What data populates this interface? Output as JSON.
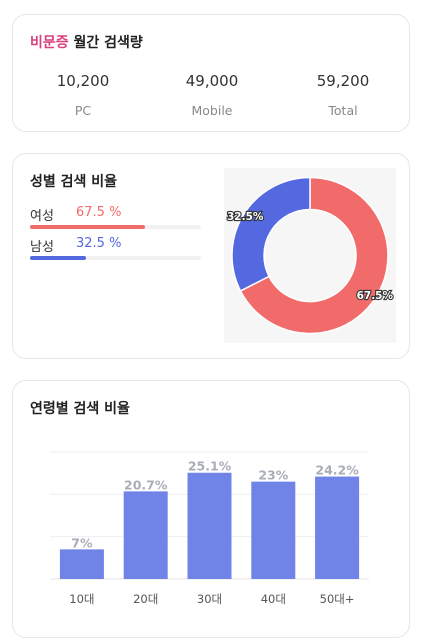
{
  "summary": {
    "keyword": "비문증",
    "title": "월간 검색량",
    "stats": [
      {
        "value": "10,200",
        "label": "PC"
      },
      {
        "value": "49,000",
        "label": "Mobile"
      },
      {
        "value": "59,200",
        "label": "Total"
      }
    ]
  },
  "gender": {
    "title": "성별 검색 비율",
    "female": {
      "label": "여성",
      "value_text": "67.5 %",
      "fraction": 0.675
    },
    "male": {
      "label": "남성",
      "value_text": "32.5 %",
      "fraction": 0.325
    },
    "colors": {
      "female": "#f26b6b",
      "male": "#5468e0"
    }
  },
  "chart_data": [
    {
      "type": "pie",
      "categories": [
        "여성",
        "남성"
      ],
      "values": [
        67.5,
        32.5
      ],
      "labels": [
        "67.5%",
        "32.5%"
      ],
      "colors": [
        "#f26b6b",
        "#5468e0"
      ]
    },
    {
      "type": "bar",
      "categories": [
        "10대",
        "20대",
        "30대",
        "40대",
        "50대+"
      ],
      "values": [
        7,
        20.7,
        25.1,
        23,
        24.2
      ],
      "data_labels": [
        "7%",
        "20.7%",
        "25.1%",
        "23%",
        "24.2%"
      ],
      "ylim": [
        0,
        30
      ],
      "grid": true,
      "bar_color": "#6f84e6"
    }
  ],
  "age": {
    "title": "연령별 검색 비율"
  }
}
